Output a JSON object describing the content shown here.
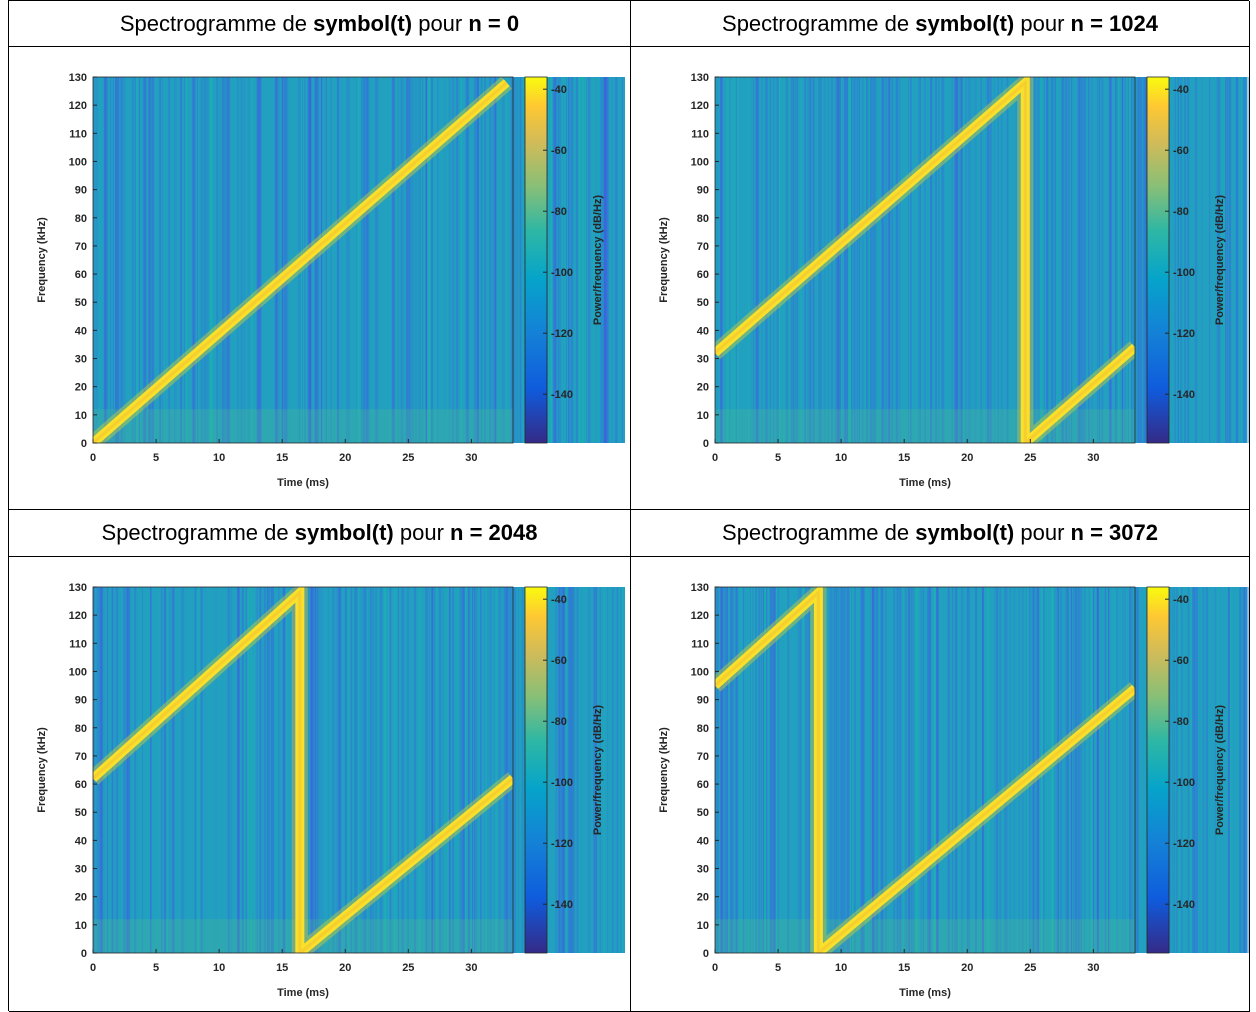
{
  "table": {
    "cells": [
      {
        "heading": [
          {
            "text": "Spectrogramme de"
          },
          {
            "text": "symbol(t)",
            "bold": true
          },
          {
            "text": "pour"
          },
          {
            "text": "n = 0",
            "bold": true
          }
        ]
      },
      {
        "heading": [
          {
            "text": "Spectrogramme de"
          },
          {
            "text": "symbol(t)",
            "bold": true
          },
          {
            "text": "pour"
          },
          {
            "text": "n = 1024",
            "bold": true
          }
        ]
      },
      {
        "heading": [
          {
            "text": "Spectrogramme de"
          },
          {
            "text": "symbol(t)",
            "bold": true
          },
          {
            "text": "pour"
          },
          {
            "text": "n = 2048",
            "bold": true
          }
        ]
      },
      {
        "heading": [
          {
            "text": "Spectrogramme de"
          },
          {
            "text": "symbol(t)",
            "bold": true
          },
          {
            "text": "pour"
          },
          {
            "text": "n = 3072",
            "bold": true
          }
        ]
      }
    ]
  },
  "chart_data": [
    {
      "type": "spectrogram",
      "xlabel": "Time (ms)",
      "ylabel": "Frequency (kHz)",
      "clabel": "Power/frequency (dB/Hz)",
      "x": [
        0,
        32.8
      ],
      "values": [
        0,
        128
      ],
      "color": "#f9e02a",
      "xlim": [
        0,
        33.3
      ],
      "xticks": [
        0,
        5,
        10,
        15,
        20,
        25,
        30
      ],
      "ylim": [
        0,
        130
      ],
      "yticks": [
        0,
        10,
        20,
        30,
        40,
        50,
        60,
        70,
        80,
        90,
        100,
        110,
        120,
        130
      ],
      "clim": [
        -156,
        -36
      ],
      "cticks": [
        -40,
        -60,
        -80,
        -100,
        -120,
        -140
      ]
    },
    {
      "type": "spectrogram",
      "xlabel": "Time (ms)",
      "ylabel": "Frequency (kHz)",
      "clabel": "Power/frequency (dB/Hz)",
      "x": [
        0,
        24.6,
        24.6,
        33.3
      ],
      "values": [
        32,
        128,
        0,
        34
      ],
      "color": "#f9e02a",
      "xlim": [
        0,
        33.3
      ],
      "xticks": [
        0,
        5,
        10,
        15,
        20,
        25,
        30
      ],
      "ylim": [
        0,
        130
      ],
      "yticks": [
        0,
        10,
        20,
        30,
        40,
        50,
        60,
        70,
        80,
        90,
        100,
        110,
        120,
        130
      ],
      "clim": [
        -156,
        -36
      ],
      "cticks": [
        -40,
        -60,
        -80,
        -100,
        -120,
        -140
      ]
    },
    {
      "type": "spectrogram",
      "xlabel": "Time (ms)",
      "ylabel": "Frequency (kHz)",
      "clabel": "Power/frequency (dB/Hz)",
      "x": [
        0,
        16.4,
        16.4,
        33.3
      ],
      "values": [
        62,
        128,
        0,
        62
      ],
      "color": "#f9e02a",
      "xlim": [
        0,
        33.3
      ],
      "xticks": [
        0,
        5,
        10,
        15,
        20,
        25,
        30
      ],
      "ylim": [
        0,
        130
      ],
      "yticks": [
        0,
        10,
        20,
        30,
        40,
        50,
        60,
        70,
        80,
        90,
        100,
        110,
        120,
        130
      ],
      "clim": [
        -156,
        -36
      ],
      "cticks": [
        -40,
        -60,
        -80,
        -100,
        -120,
        -140
      ]
    },
    {
      "type": "spectrogram",
      "xlabel": "Time (ms)",
      "ylabel": "Frequency (kHz)",
      "clabel": "Power/frequency (dB/Hz)",
      "x": [
        0,
        8.2,
        8.2,
        33.3
      ],
      "values": [
        95,
        128,
        0,
        94
      ],
      "color": "#f9e02a",
      "xlim": [
        0,
        33.3
      ],
      "xticks": [
        0,
        5,
        10,
        15,
        20,
        25,
        30
      ],
      "ylim": [
        0,
        130
      ],
      "yticks": [
        0,
        10,
        20,
        30,
        40,
        50,
        60,
        70,
        80,
        90,
        100,
        110,
        120,
        130
      ],
      "clim": [
        -156,
        -36
      ],
      "cticks": [
        -40,
        -60,
        -80,
        -100,
        -120,
        -140
      ]
    }
  ]
}
